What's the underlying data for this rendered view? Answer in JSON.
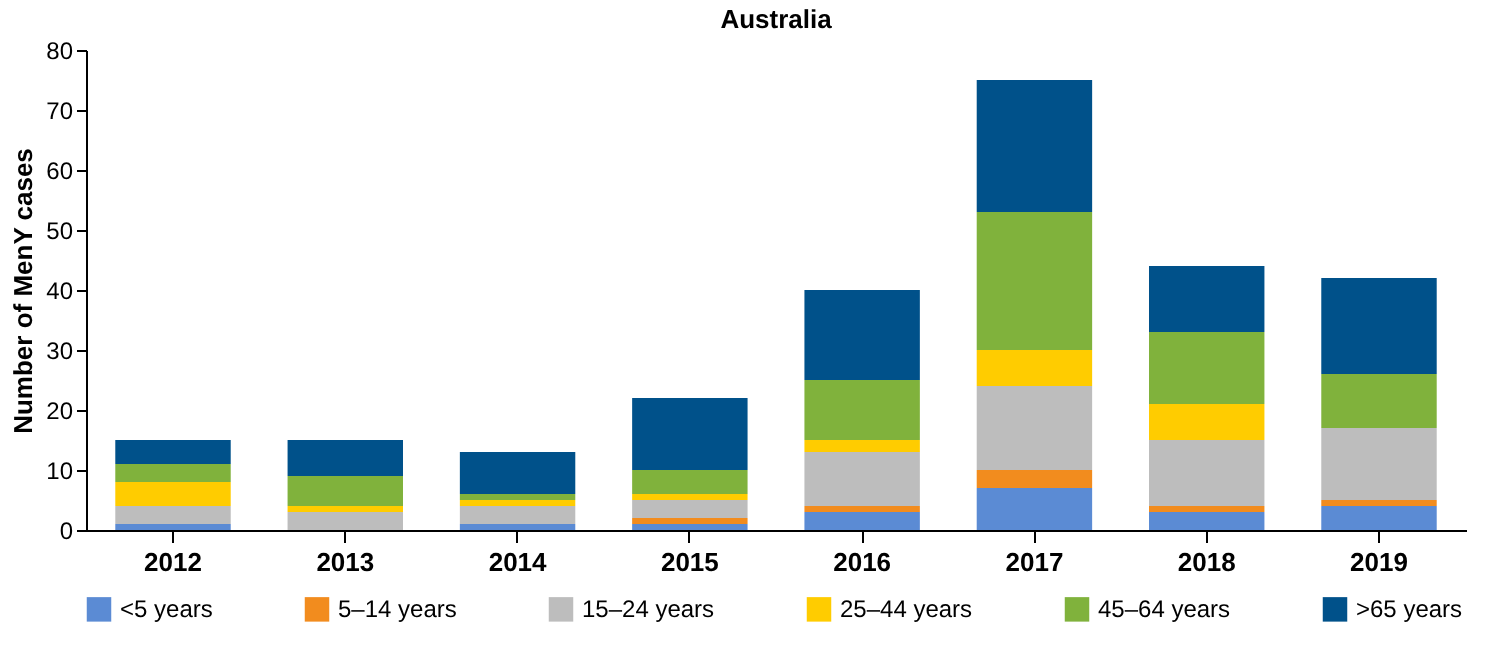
{
  "chart_data": {
    "type": "bar",
    "title": "Australia",
    "ylabel": "Number of MenY cases",
    "stacked": true,
    "legend": "bottom",
    "grid": false,
    "categories": [
      "2012",
      "2013",
      "2014",
      "2015",
      "2016",
      "2017",
      "2018",
      "2019"
    ],
    "ylim": [
      0,
      80
    ],
    "yticks": [
      0,
      10,
      20,
      30,
      40,
      50,
      60,
      70,
      80
    ],
    "series": [
      {
        "name": "<5 years",
        "color": "#5b8bd4",
        "values": [
          1,
          0,
          1,
          1,
          3,
          7,
          3,
          4
        ]
      },
      {
        "name": "5–14 years",
        "color": "#f28c1e",
        "values": [
          0,
          0,
          0,
          1,
          1,
          3,
          1,
          1
        ]
      },
      {
        "name": "15–24 years",
        "color": "#bdbdbd",
        "values": [
          3,
          3,
          3,
          3,
          9,
          14,
          11,
          12
        ]
      },
      {
        "name": "25–44 years",
        "color": "#ffcc00",
        "values": [
          4,
          1,
          1,
          1,
          2,
          6,
          6,
          0
        ]
      },
      {
        "name": "45–64 years",
        "color": "#80b23c",
        "values": [
          3,
          5,
          1,
          4,
          10,
          23,
          12,
          9
        ]
      },
      {
        "name": ">65 years",
        "color": "#00518a",
        "values": [
          4,
          6,
          7,
          12,
          15,
          22,
          11,
          16
        ]
      }
    ]
  }
}
